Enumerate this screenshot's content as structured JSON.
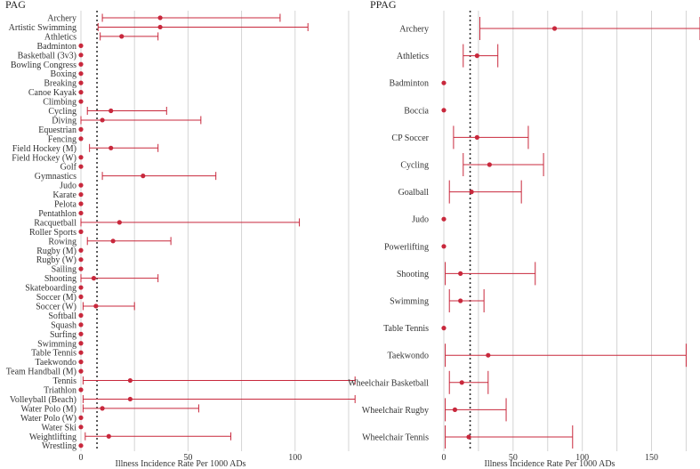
{
  "chart_data": [
    {
      "type": "dot-errorbar",
      "title": "PAG",
      "xlabel": "Illness Incidence Rate Per 1000 ADs",
      "xlim": [
        -5,
        130
      ],
      "xticks": [
        0,
        50,
        100
      ],
      "reference_line": 7.5,
      "series": [
        {
          "name": "Archery",
          "value": 37,
          "low": 10,
          "high": 93
        },
        {
          "name": "Artistic Swimming",
          "value": 37,
          "low": 8,
          "high": 106
        },
        {
          "name": "Athletics",
          "value": 19,
          "low": 9,
          "high": 36
        },
        {
          "name": "Badminton",
          "value": 0,
          "low": 0,
          "high": 0
        },
        {
          "name": "Basketball (3v3)",
          "value": 0,
          "low": 0,
          "high": 0
        },
        {
          "name": "Bowling Congress",
          "value": 0,
          "low": 0,
          "high": 0
        },
        {
          "name": "Boxing",
          "value": 0,
          "low": 0,
          "high": 0
        },
        {
          "name": "Breaking",
          "value": 0,
          "low": 0,
          "high": 0
        },
        {
          "name": "Canoe Kayak",
          "value": 0,
          "low": 0,
          "high": 0
        },
        {
          "name": "Climbing",
          "value": 0,
          "low": 0,
          "high": 0
        },
        {
          "name": "Cycling",
          "value": 14,
          "low": 3,
          "high": 40
        },
        {
          "name": "Diving",
          "value": 10,
          "low": 0,
          "high": 56
        },
        {
          "name": "Equestrian",
          "value": 0,
          "low": 0,
          "high": 0
        },
        {
          "name": "Fencing",
          "value": 0,
          "low": 0,
          "high": 0
        },
        {
          "name": "Field Hockey (M)",
          "value": 14,
          "low": 4,
          "high": 36
        },
        {
          "name": "Field Hockey (W)",
          "value": 0,
          "low": 0,
          "high": 0
        },
        {
          "name": "Golf",
          "value": 0,
          "low": 0,
          "high": 0
        },
        {
          "name": "Gymnastics",
          "value": 29,
          "low": 10,
          "high": 63
        },
        {
          "name": "Judo",
          "value": 0,
          "low": 0,
          "high": 0
        },
        {
          "name": "Karate",
          "value": 0,
          "low": 0,
          "high": 0
        },
        {
          "name": "Pelota",
          "value": 0,
          "low": 0,
          "high": 0
        },
        {
          "name": "Pentathlon",
          "value": 0,
          "low": 0,
          "high": 0
        },
        {
          "name": "Racquetball",
          "value": 18,
          "low": 0,
          "high": 102
        },
        {
          "name": "Roller Sports",
          "value": 0,
          "low": 0,
          "high": 0
        },
        {
          "name": "Rowing",
          "value": 15,
          "low": 3,
          "high": 42
        },
        {
          "name": "Rugby (M)",
          "value": 0,
          "low": 0,
          "high": 0
        },
        {
          "name": "Rugby (W)",
          "value": 0,
          "low": 0,
          "high": 0
        },
        {
          "name": "Sailing",
          "value": 0,
          "low": 0,
          "high": 0
        },
        {
          "name": "Shooting",
          "value": 6,
          "low": 0,
          "high": 36
        },
        {
          "name": "Skateboarding",
          "value": 0,
          "low": 0,
          "high": 0
        },
        {
          "name": "Soccer (M)",
          "value": 0,
          "low": 0,
          "high": 0
        },
        {
          "name": "Soccer (W)",
          "value": 7,
          "low": 1,
          "high": 25
        },
        {
          "name": "Softball",
          "value": 0,
          "low": 0,
          "high": 0
        },
        {
          "name": "Squash",
          "value": 0,
          "low": 0,
          "high": 0
        },
        {
          "name": "Surfing",
          "value": 0,
          "low": 0,
          "high": 0
        },
        {
          "name": "Swimming",
          "value": 0,
          "low": 0,
          "high": 0
        },
        {
          "name": "Table Tennis",
          "value": 0,
          "low": 0,
          "high": 0
        },
        {
          "name": "Taekwondo",
          "value": 0,
          "low": 0,
          "high": 0
        },
        {
          "name": "Team Handball (M)",
          "value": 0,
          "low": 0,
          "high": 0
        },
        {
          "name": "Tennis",
          "value": 23,
          "low": 1,
          "high": 128
        },
        {
          "name": "Triathlon",
          "value": 0,
          "low": 0,
          "high": 0
        },
        {
          "name": "Volleyball (Beach)",
          "value": 23,
          "low": 1,
          "high": 128
        },
        {
          "name": "Water Polo (M)",
          "value": 10,
          "low": 1,
          "high": 55
        },
        {
          "name": "Water Polo (W)",
          "value": 0,
          "low": 0,
          "high": 0
        },
        {
          "name": "Water Ski",
          "value": 0,
          "low": 0,
          "high": 0
        },
        {
          "name": "Weightlifting",
          "value": 13,
          "low": 2,
          "high": 70
        },
        {
          "name": "Wrestling",
          "value": 0,
          "low": 0,
          "high": 0
        }
      ]
    },
    {
      "type": "dot-errorbar",
      "title": "PPAG",
      "xlabel": "Illness Incidence Rate Per 1000 ADs",
      "xlim": [
        -5,
        185
      ],
      "xticks": [
        0,
        50,
        100,
        150
      ],
      "reference_line": 19,
      "series": [
        {
          "name": "Archery",
          "value": 80,
          "low": 26,
          "high": 185
        },
        {
          "name": "Athletics",
          "value": 24,
          "low": 14,
          "high": 39
        },
        {
          "name": "Badminton",
          "value": 0,
          "low": 0,
          "high": 0
        },
        {
          "name": "Boccia",
          "value": 0,
          "low": 0,
          "high": 0
        },
        {
          "name": "CP Soccer",
          "value": 24,
          "low": 7,
          "high": 61
        },
        {
          "name": "Cycling",
          "value": 33,
          "low": 14,
          "high": 72
        },
        {
          "name": "Goalball",
          "value": 20,
          "low": 4,
          "high": 56
        },
        {
          "name": "Judo",
          "value": 0,
          "low": 0,
          "high": 0
        },
        {
          "name": "Powerlifting",
          "value": 0,
          "low": 0,
          "high": 0
        },
        {
          "name": "Shooting",
          "value": 12,
          "low": 1,
          "high": 66
        },
        {
          "name": "Swimming",
          "value": 12,
          "low": 4,
          "high": 29
        },
        {
          "name": "Table Tennis",
          "value": 0,
          "low": 0,
          "high": 0
        },
        {
          "name": "Taekwondo",
          "value": 32,
          "low": 1,
          "high": 175
        },
        {
          "name": "Wheelchair Basketball",
          "value": 13,
          "low": 4,
          "high": 32
        },
        {
          "name": "Wheelchair Rugby",
          "value": 8,
          "low": 1,
          "high": 45
        },
        {
          "name": "Wheelchair Tennis",
          "value": 18,
          "low": 1,
          "high": 93
        }
      ]
    }
  ],
  "colors": {
    "marker": "#c8283c",
    "errorbar": "#c8283c",
    "grid": "#d4d4d4",
    "refline": "#333333"
  }
}
